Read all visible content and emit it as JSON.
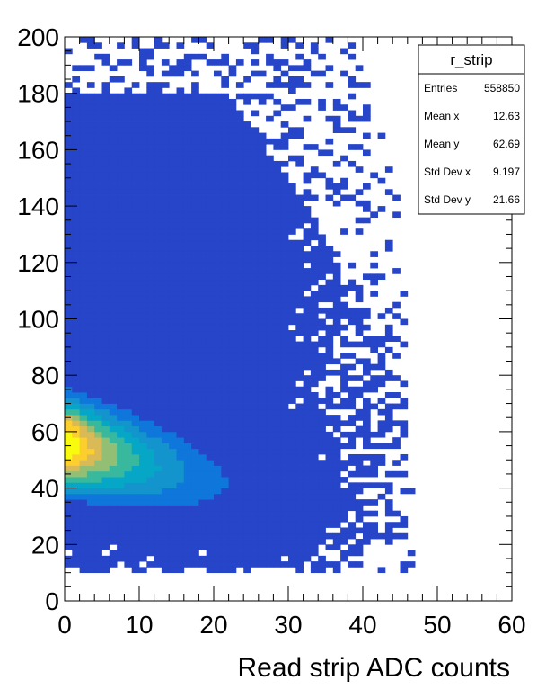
{
  "chart_data": {
    "type": "heatmap",
    "title": "",
    "xlabel": "Read strip ADC counts",
    "ylabel": "",
    "xlim": [
      0,
      60
    ],
    "ylim": [
      0,
      200
    ],
    "x_ticks": [
      "0",
      "10",
      "20",
      "30",
      "40",
      "50",
      "60"
    ],
    "y_ticks": [
      "0",
      "20",
      "40",
      "60",
      "80",
      "100",
      "120",
      "140",
      "160",
      "180",
      "200"
    ],
    "bin_width_x": 1,
    "bin_width_y": 2,
    "distribution": {
      "peak_x": 2,
      "peak_y": 56,
      "peak_slope_per_adc": -0.65,
      "max_x": 47,
      "min_y": 10,
      "max_y": 200
    },
    "colormap": [
      "#352a87",
      "#2745c8",
      "#0f77db",
      "#1394cc",
      "#06a7c6",
      "#38b99e",
      "#92bf73",
      "#d9ba56",
      "#fcce2e",
      "#f9fb0e"
    ],
    "grid": false,
    "legend": "none"
  },
  "stats": {
    "title": "r_strip",
    "rows": [
      {
        "label": "Entries",
        "value": "558850"
      },
      {
        "label": "Mean x",
        "value": "12.63"
      },
      {
        "label": "Mean y",
        "value": "62.69"
      },
      {
        "label": "Std Dev x",
        "value": "9.197"
      },
      {
        "label": "Std Dev y",
        "value": "21.66"
      }
    ]
  }
}
